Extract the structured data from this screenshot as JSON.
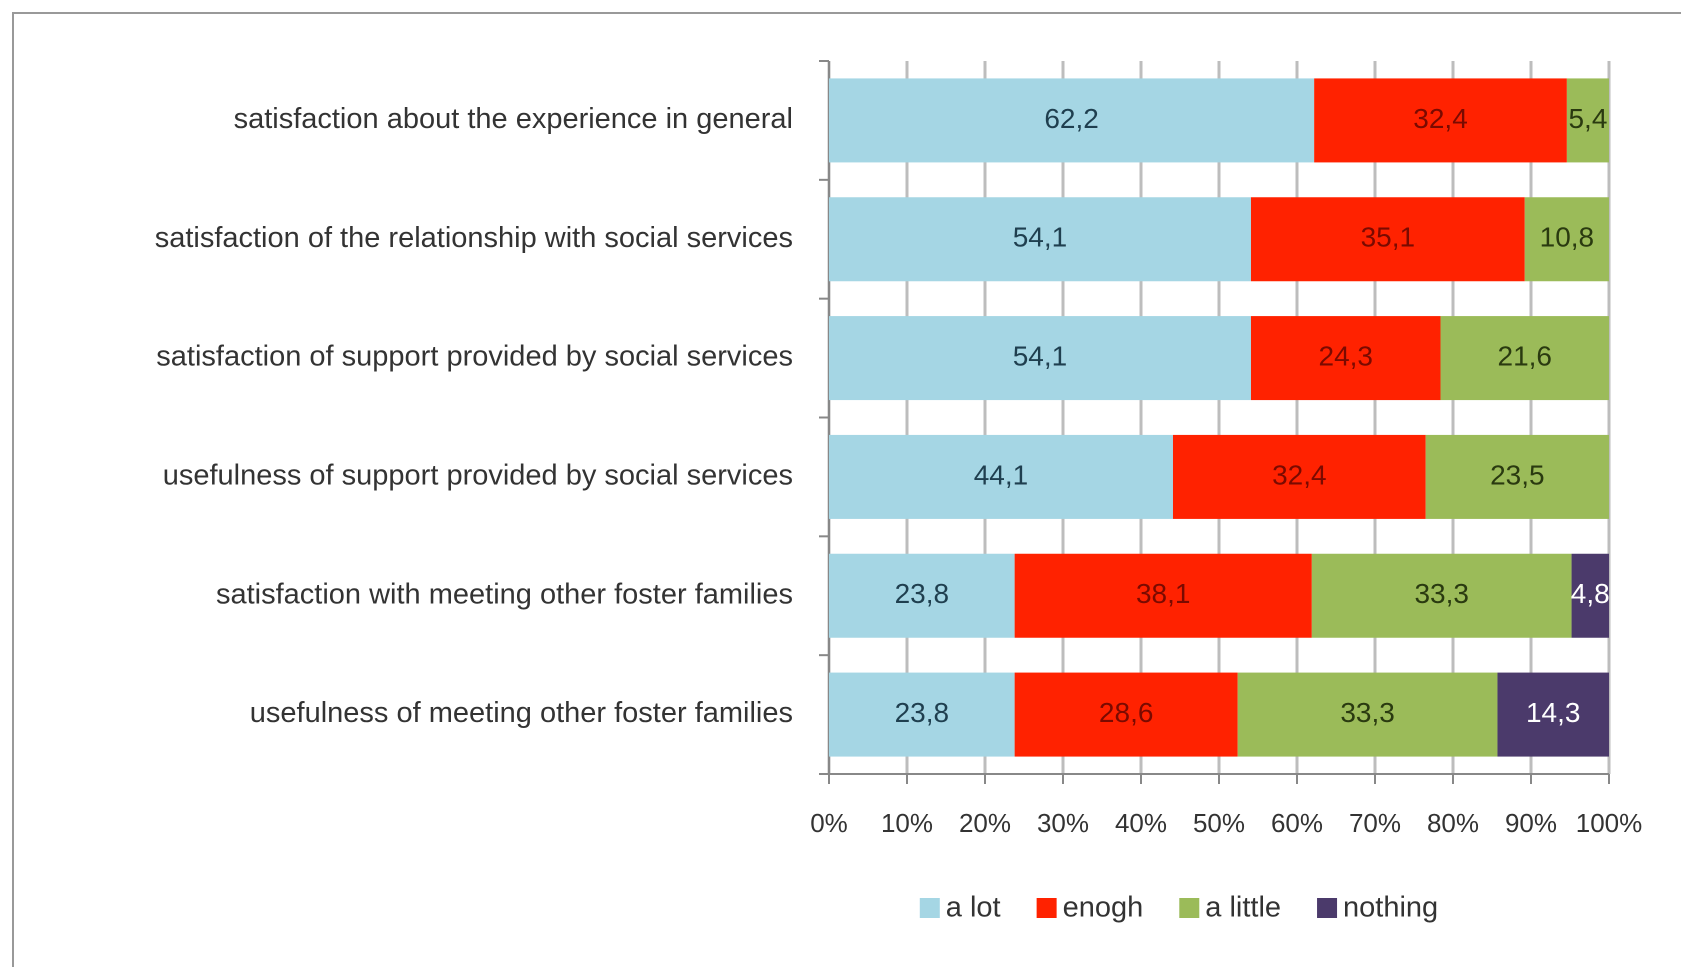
{
  "chart_data": {
    "type": "stacked_barh",
    "categories": [
      "satisfaction about the experience in general",
      "satisfaction of the relationship with social services",
      "satisfaction of support provided by social services",
      "usefulness of support provided by social services",
      "satisfaction with meeting other foster families",
      "usefulness of meeting other foster families"
    ],
    "series": [
      {
        "name": "a lot",
        "color": "#a5d6e4",
        "label_color": "#1f3f4f",
        "values": [
          62.2,
          54.1,
          54.1,
          44.1,
          23.8,
          23.8
        ],
        "value_labels": [
          "62,2",
          "54,1",
          "54,1",
          "44,1",
          "23,8",
          "23,8"
        ]
      },
      {
        "name": "enogh",
        "color": "#ff2200",
        "label_color": "#7a0a00",
        "values": [
          32.4,
          35.1,
          24.3,
          32.4,
          38.1,
          28.6
        ],
        "value_labels": [
          "32,4",
          "35,1",
          "24,3",
          "32,4",
          "38,1",
          "28,6"
        ]
      },
      {
        "name": "a little",
        "color": "#9bbb59",
        "label_color": "#2a3a10",
        "values": [
          5.4,
          10.8,
          21.6,
          23.5,
          33.3,
          33.3
        ],
        "value_labels": [
          "5,4",
          "10,8",
          "21,6",
          "23,5",
          "33,3",
          "33,3"
        ]
      },
      {
        "name": "nothing",
        "color": "#4b3a6b",
        "label_color": "#ffffff",
        "values": [
          null,
          null,
          null,
          null,
          4.8,
          14.3
        ],
        "value_labels": [
          null,
          null,
          null,
          null,
          "4,8",
          "14,3"
        ]
      }
    ],
    "xlim": [
      0,
      100
    ],
    "xticks": [
      {
        "value": 0,
        "label": "0%"
      },
      {
        "value": 10,
        "label": "10%"
      },
      {
        "value": 20,
        "label": "20%"
      },
      {
        "value": 30,
        "label": "30%"
      },
      {
        "value": 40,
        "label": "40%"
      },
      {
        "value": 50,
        "label": "50%"
      },
      {
        "value": 60,
        "label": "60%"
      },
      {
        "value": 70,
        "label": "70%"
      },
      {
        "value": 80,
        "label": "80%"
      },
      {
        "value": 90,
        "label": "90%"
      },
      {
        "value": 100,
        "label": "100%"
      }
    ],
    "grid": true,
    "legend": "bottom"
  }
}
